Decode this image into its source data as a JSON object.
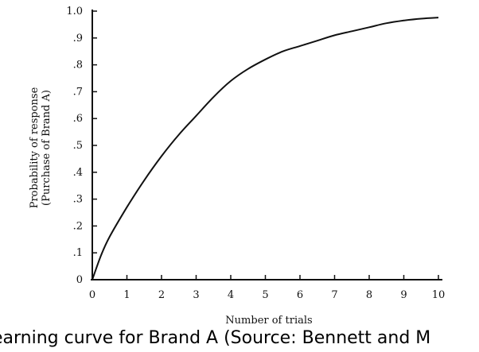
{
  "chart_data": {
    "type": "line",
    "xlabel": "Number of trials",
    "ylabel": [
      "Probability of response",
      "(Purchase of Brand A)"
    ],
    "xlim": [
      0,
      10
    ],
    "ylim": [
      0,
      1.0
    ],
    "x_ticks": [
      0,
      1,
      2,
      3,
      4,
      5,
      6,
      7,
      8,
      9,
      10
    ],
    "y_ticks": [
      {
        "value": 0,
        "label": "0"
      },
      {
        "value": 0.1,
        "label": ".1"
      },
      {
        "value": 0.2,
        "label": ".2"
      },
      {
        "value": 0.3,
        "label": ".3"
      },
      {
        "value": 0.4,
        "label": ".4"
      },
      {
        "value": 0.5,
        "label": ".5"
      },
      {
        "value": 0.6,
        "label": ".6"
      },
      {
        "value": 0.7,
        "label": ".7"
      },
      {
        "value": 0.8,
        "label": ".8"
      },
      {
        "value": 0.9,
        "label": ".9"
      },
      {
        "value": 1.0,
        "label": "1.0"
      }
    ],
    "grid": false,
    "series": [
      {
        "x": [
          0,
          0.25,
          0.5,
          1,
          1.5,
          2,
          2.5,
          3,
          3.5,
          4,
          4.5,
          5,
          5.5,
          6,
          6.5,
          7,
          7.5,
          8,
          8.5,
          9,
          9.5,
          10
        ],
        "y": [
          0,
          0.09,
          0.16,
          0.27,
          0.37,
          0.46,
          0.54,
          0.61,
          0.68,
          0.74,
          0.785,
          0.82,
          0.85,
          0.87,
          0.89,
          0.91,
          0.925,
          0.94,
          0.955,
          0.965,
          0.972,
          0.976
        ]
      }
    ]
  },
  "caption": "earning curve for Brand A (Source: Bennett and M"
}
